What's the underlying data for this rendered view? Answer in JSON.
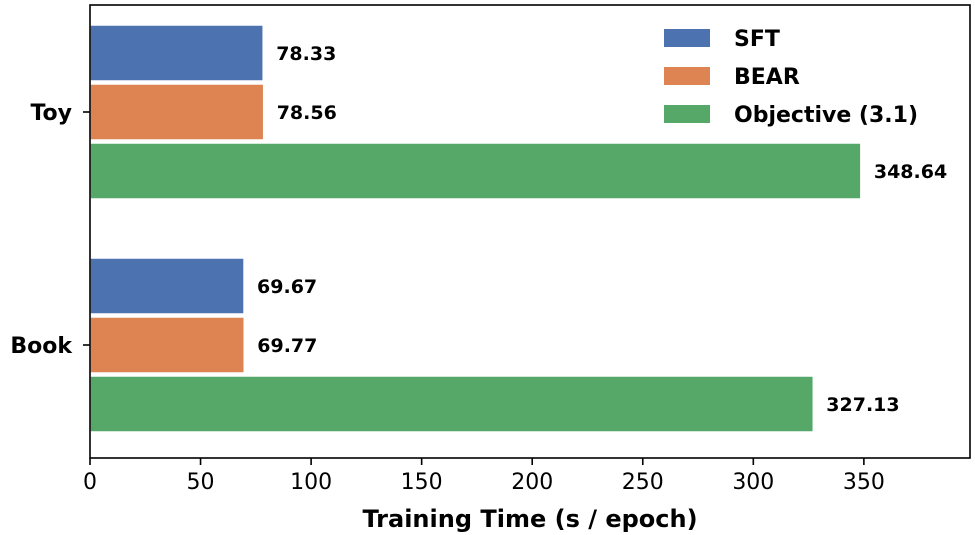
{
  "chart_data": {
    "type": "bar",
    "orientation": "horizontal",
    "categories": [
      "Toy",
      "Book"
    ],
    "series": [
      {
        "name": "SFT",
        "color": "#4c72b0",
        "values": [
          78.33,
          69.67
        ],
        "labels": [
          "78.33",
          "69.67"
        ]
      },
      {
        "name": "BEAR",
        "color": "#dd8452",
        "values": [
          78.56,
          69.77
        ],
        "labels": [
          "78.56",
          "69.77"
        ]
      },
      {
        "name": "Objective (3.1)",
        "color": "#55a868",
        "values": [
          348.64,
          327.13
        ],
        "labels": [
          "348.64",
          "327.13"
        ]
      }
    ],
    "xlabel": "Training Time (s / epoch)",
    "ylabel": "",
    "xlim": [
      0,
      398
    ],
    "xticks": [
      0,
      50,
      100,
      150,
      200,
      250,
      300,
      350
    ],
    "xtick_labels": [
      "0",
      "50",
      "100",
      "150",
      "200",
      "250",
      "300",
      "350"
    ],
    "grid": false,
    "legend_position": "top-right"
  }
}
